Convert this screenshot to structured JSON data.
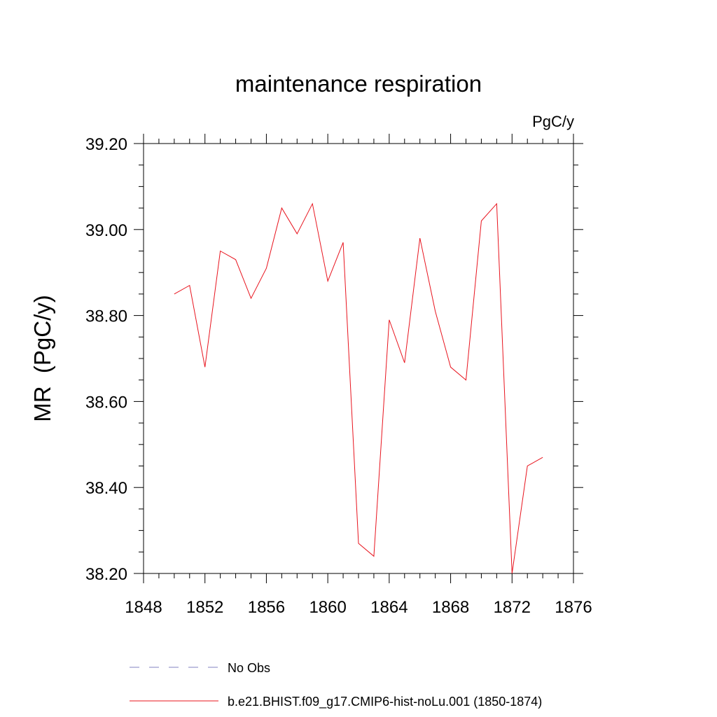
{
  "chart_data": {
    "type": "line",
    "title": "maintenance respiration",
    "units_label": "PgC/y",
    "ylabel": "MR  (PgC/y)",
    "xlabel": "",
    "xlim": [
      1848,
      1876
    ],
    "ylim": [
      38.2,
      39.2
    ],
    "x_ticks": [
      1848,
      1852,
      1856,
      1860,
      1864,
      1868,
      1872,
      1876
    ],
    "x_tick_labels": [
      "1848",
      "1852",
      "1856",
      "1860",
      "1864",
      "1868",
      "1872",
      "1876"
    ],
    "y_ticks": [
      38.2,
      38.4,
      38.6,
      38.8,
      39.0,
      39.2
    ],
    "y_tick_labels": [
      "38.20",
      "38.40",
      "38.60",
      "38.80",
      "39.00",
      "39.20"
    ],
    "grid": false,
    "legend_position": "bottom",
    "series": [
      {
        "name": "b.e21.BHIST.f09_g17.CMIP6-hist-noLu.001 (1850-1874)",
        "color": "#e8141e",
        "style": "solid",
        "x": [
          1850,
          1851,
          1852,
          1853,
          1854,
          1855,
          1856,
          1857,
          1858,
          1859,
          1860,
          1861,
          1862,
          1863,
          1864,
          1865,
          1866,
          1867,
          1868,
          1869,
          1870,
          1871,
          1872,
          1873,
          1874
        ],
        "values": [
          38.85,
          38.87,
          38.68,
          38.95,
          38.93,
          38.84,
          38.91,
          39.05,
          38.99,
          39.06,
          38.88,
          38.97,
          38.27,
          38.24,
          38.79,
          38.69,
          38.98,
          38.81,
          38.68,
          38.65,
          39.02,
          39.06,
          38.2,
          38.45,
          38.47
        ]
      }
    ],
    "legend_entries": [
      {
        "label": "No Obs",
        "color": "#8080c0",
        "style": "dashed"
      },
      {
        "label": "b.e21.BHIST.f09_g17.CMIP6-hist-noLu.001 (1850-1874)",
        "color": "#e8141e",
        "style": "solid"
      }
    ]
  }
}
